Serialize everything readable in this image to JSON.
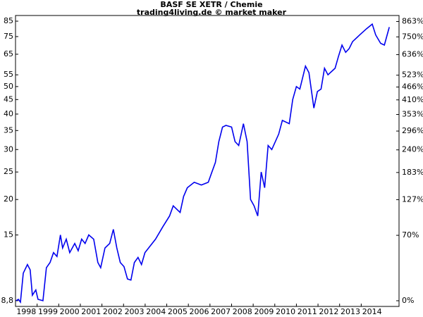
{
  "chart_data": {
    "type": "line",
    "title": "BASF SE XETR / Chemie",
    "subtitle": "trading4living.de © market maker",
    "x": [
      1998.03,
      1998.13,
      1998.23,
      1998.36,
      1998.55,
      1998.68,
      1998.78,
      1998.94,
      1999.04,
      1999.27,
      1999.43,
      1999.6,
      1999.76,
      1999.92,
      2000.08,
      2000.18,
      2000.35,
      2000.51,
      2000.74,
      2000.9,
      2001.06,
      2001.22,
      2001.39,
      2001.62,
      2001.81,
      2001.94,
      2002.14,
      2002.36,
      2002.53,
      2002.69,
      2002.85,
      2003.02,
      2003.18,
      2003.34,
      2003.5,
      2003.67,
      2003.83,
      2003.99,
      2004.16,
      2004.48,
      2004.81,
      2005.13,
      2005.3,
      2005.62,
      2005.78,
      2005.95,
      2006.27,
      2006.6,
      2006.92,
      2007.09,
      2007.25,
      2007.41,
      2007.58,
      2007.74,
      2008.0,
      2008.16,
      2008.33,
      2008.55,
      2008.72,
      2008.88,
      2009.04,
      2009.21,
      2009.37,
      2009.53,
      2009.69,
      2009.86,
      2010.18,
      2010.35,
      2010.67,
      2010.83,
      2011.0,
      2011.16,
      2011.42,
      2011.58,
      2011.81,
      2011.97,
      2012.14,
      2012.3,
      2012.46,
      2012.79,
      2012.95,
      2013.11,
      2013.28,
      2013.44,
      2013.6,
      2013.93,
      2014.25,
      2014.51,
      2014.67,
      2014.9,
      2015.07,
      2015.3
    ],
    "series": [
      {
        "name": "BASF SE XETR",
        "color": "#0000ee",
        "values": [
          8.8,
          8.9,
          8.7,
          11,
          11.8,
          11.3,
          9.2,
          9.6,
          8.9,
          8.8,
          11.5,
          12,
          13,
          12.6,
          15,
          13.5,
          14.5,
          13,
          14,
          13.2,
          14.5,
          14,
          15,
          14.5,
          12,
          11.5,
          13.5,
          14,
          15.7,
          13.5,
          12,
          11.6,
          10.5,
          10.4,
          12,
          12.5,
          11.8,
          13,
          13.5,
          14.5,
          16,
          17.5,
          19,
          18,
          20.5,
          22,
          23,
          22.5,
          23,
          25,
          27,
          32,
          36,
          36.5,
          36,
          32,
          31,
          37,
          32,
          20,
          19,
          17.5,
          25,
          22,
          31,
          30,
          34,
          38,
          37,
          45,
          50,
          49,
          59,
          56,
          42,
          48,
          49,
          58,
          55,
          58,
          64,
          70,
          66,
          68,
          72,
          76,
          80,
          83,
          76,
          71,
          70,
          81
        ]
      }
    ],
    "xlim": [
      1998,
      2015.75
    ],
    "xticks": [
      1998,
      1999,
      2000,
      2001,
      2002,
      2003,
      2004,
      2005,
      2006,
      2007,
      2008,
      2009,
      2010,
      2011,
      2012,
      2013,
      2014
    ],
    "ylim": [
      8.4,
      89
    ],
    "log_scale": true,
    "yticks": [
      {
        "value": 8.8,
        "label": "8,8"
      },
      15,
      20,
      25,
      30,
      35,
      40,
      45,
      50,
      55,
      65,
      75,
      85
    ],
    "y2lim": [
      -4.5,
      911
    ],
    "y2ticks": [
      {
        "value": 0,
        "label": "0%"
      },
      {
        "value": 70,
        "label": "70%"
      },
      {
        "value": 127,
        "label": "127%"
      },
      {
        "value": 183,
        "label": "183%"
      },
      {
        "value": 240,
        "label": "240%"
      },
      {
        "value": 296,
        "label": "296%"
      },
      {
        "value": 353,
        "label": "353%"
      },
      {
        "value": 410,
        "label": "410%"
      },
      {
        "value": 466,
        "label": "466%"
      },
      {
        "value": 523,
        "label": "523%"
      },
      {
        "value": 636,
        "label": "636%"
      },
      {
        "value": 750,
        "label": "750%"
      },
      {
        "value": 863,
        "label": "863%"
      }
    ]
  }
}
